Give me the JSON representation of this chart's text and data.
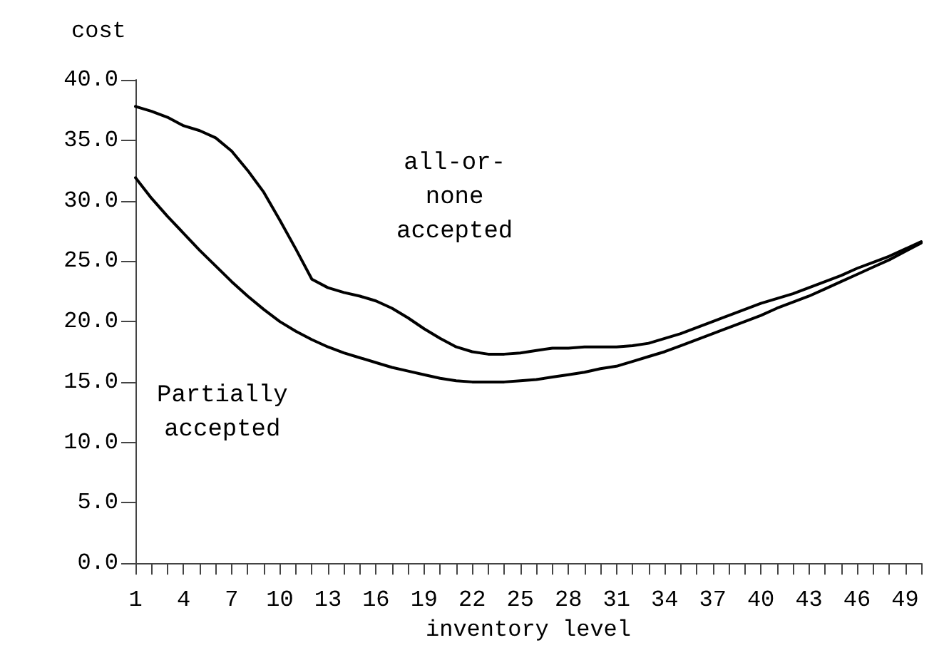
{
  "chart_data": {
    "type": "line",
    "xlabel": "inventory level",
    "ylabel": "cost",
    "categories": [
      "1",
      null,
      null,
      "4",
      null,
      null,
      "7",
      null,
      null,
      "10",
      null,
      null,
      "13",
      null,
      null,
      "16",
      null,
      null,
      "19",
      null,
      null,
      "22",
      null,
      null,
      "25",
      null,
      null,
      "28",
      null,
      null,
      "31",
      null,
      null,
      "34",
      null,
      null,
      "37",
      null,
      null,
      "40",
      null,
      null,
      "43",
      null,
      null,
      "46",
      null,
      null,
      "49",
      null
    ],
    "ylim": [
      0,
      40
    ],
    "yticks": [
      {
        "value": 0,
        "label": "0.0"
      },
      {
        "value": 5,
        "label": "5.0"
      },
      {
        "value": 10,
        "label": "10.0"
      },
      {
        "value": 15,
        "label": "15.0"
      },
      {
        "value": 20,
        "label": "20.0"
      },
      {
        "value": 25,
        "label": "25.0"
      },
      {
        "value": 30,
        "label": "30.0"
      },
      {
        "value": 35,
        "label": "35.0"
      },
      {
        "value": 40,
        "label": "40.0"
      }
    ],
    "grid": false,
    "legend": false,
    "marker": "none",
    "line_style": "solid",
    "series": [
      {
        "name": "all-or-\nnone\naccepted",
        "color": "#000000",
        "values": [
          37.8,
          37.4,
          36.9,
          36.2,
          35.8,
          35.2,
          34.1,
          32.5,
          30.7,
          28.4,
          26.0,
          23.5,
          22.8,
          22.4,
          22.1,
          21.7,
          21.1,
          20.3,
          19.4,
          18.6,
          17.9,
          17.5,
          17.3,
          17.3,
          17.4,
          17.6,
          17.8,
          17.8,
          17.9,
          17.9,
          17.9,
          18.0,
          18.2,
          18.6,
          19.0,
          19.5,
          20.0,
          20.5,
          21.0,
          21.5,
          21.9,
          22.3,
          22.8,
          23.3,
          23.8,
          24.4,
          24.9,
          25.4,
          26.0,
          26.6
        ]
      },
      {
        "name": "Partially\naccepted",
        "color": "#000000",
        "values": [
          31.9,
          30.2,
          28.7,
          27.3,
          25.9,
          24.6,
          23.3,
          22.1,
          21.0,
          20.0,
          19.2,
          18.5,
          17.9,
          17.4,
          17.0,
          16.6,
          16.2,
          15.9,
          15.6,
          15.3,
          15.1,
          15.0,
          15.0,
          15.0,
          15.1,
          15.2,
          15.4,
          15.6,
          15.8,
          16.1,
          16.3,
          16.7,
          17.1,
          17.5,
          18.0,
          18.5,
          19.0,
          19.5,
          20.0,
          20.5,
          21.1,
          21.6,
          22.1,
          22.7,
          23.3,
          23.9,
          24.5,
          25.1,
          25.8,
          26.5
        ]
      }
    ]
  }
}
